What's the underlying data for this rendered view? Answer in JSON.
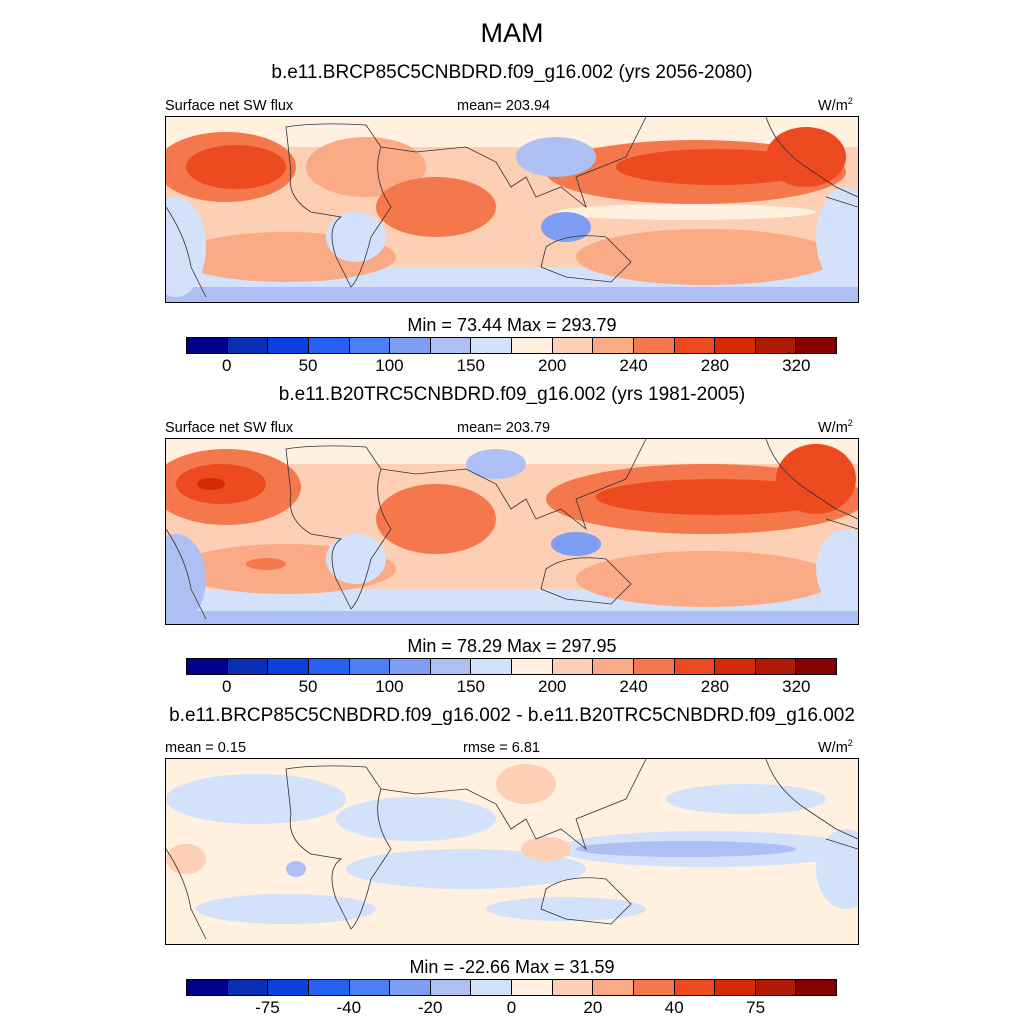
{
  "title": "MAM",
  "colors_abs": [
    "#00008b",
    "#0a2eb5",
    "#0a3fe0",
    "#2660f3",
    "#4a7ff5",
    "#7d9ef3",
    "#aebff3",
    "#d3e1fb",
    "#fff0e0",
    "#fdcfb4",
    "#fbaa86",
    "#f5774c",
    "#ee4a20",
    "#d62a06",
    "#ae1a06",
    "#870000"
  ],
  "colors_diff": [
    "#00008b",
    "#0a2eb5",
    "#0a3fe0",
    "#2660f3",
    "#4a7ff5",
    "#7d9ef3",
    "#aebff3",
    "#d3e1fb",
    "#fff0e0",
    "#fdcfb4",
    "#fbaa86",
    "#f5774c",
    "#ee4a20",
    "#d62a06",
    "#ae1a06",
    "#870000"
  ],
  "panels": [
    {
      "subtitle": "b.e11.BRCP85C5CNBDRD.f09_g16.002 (yrs 2056-2080)",
      "left_label": "Surface net SW flux",
      "center_label": "mean= 203.94",
      "units": "W/m",
      "units_sup": "2",
      "minmax": "Min =  73.44 Max = 293.79",
      "ticks": [
        "0",
        "50",
        "100",
        "150",
        "200",
        "240",
        "280",
        "320"
      ]
    },
    {
      "subtitle": "b.e11.B20TRC5CNBDRD.f09_g16.002 (yrs 1981-2005)",
      "left_label": "Surface net SW flux",
      "center_label": "mean= 203.79",
      "units": "W/m",
      "units_sup": "2",
      "minmax": "Min =  78.29 Max = 297.95",
      "ticks": [
        "0",
        "50",
        "100",
        "150",
        "200",
        "240",
        "280",
        "320"
      ]
    },
    {
      "subtitle": "b.e11.BRCP85C5CNBDRD.f09_g16.002 - b.e11.B20TRC5CNBDRD.f09_g16.002",
      "left_label": "mean =   0.15",
      "center_label": "rmse =   6.81",
      "units": "W/m",
      "units_sup": "2",
      "minmax": "Min = -22.66 Max =  31.59",
      "ticks": [
        "-75",
        "-40",
        "-20",
        "0",
        "20",
        "40",
        "75"
      ]
    }
  ]
}
